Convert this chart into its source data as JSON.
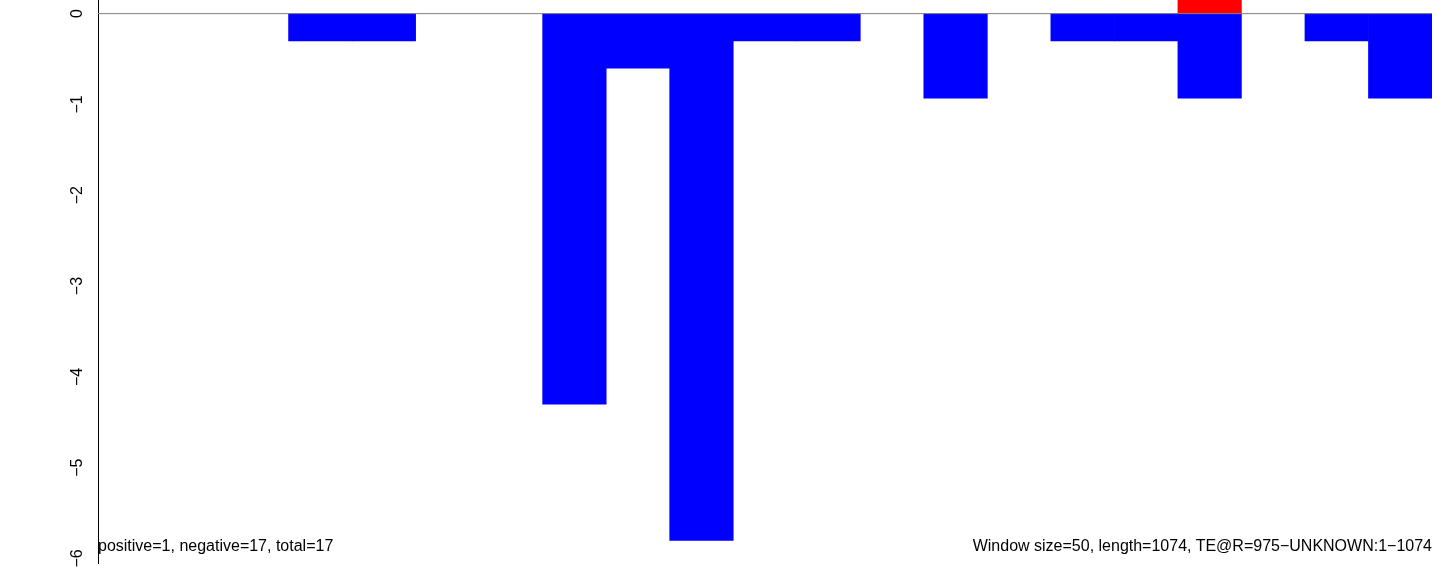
{
  "chart_data": {
    "type": "bar",
    "stacked": true,
    "categories": [
      null,
      null,
      null,
      null,
      null,
      null,
      null,
      null,
      null,
      null,
      null,
      null,
      null,
      null,
      null,
      null,
      null,
      null,
      null,
      null,
      null
    ],
    "series": [
      {
        "color": "#ff0000",
        "values": [
          null,
          null,
          null,
          null,
          null,
          null,
          null,
          null,
          null,
          null,
          null,
          null,
          null,
          null,
          null,
          null,
          null,
          0.15,
          null,
          null,
          null
        ]
      },
      {
        "color": "#0000ff",
        "values": [
          null,
          null,
          null,
          -0.3,
          -0.3,
          null,
          null,
          -4.3,
          -0.6,
          -5.8,
          -0.3,
          -0.3,
          null,
          -0.93,
          null,
          -0.3,
          -0.3,
          -0.93,
          null,
          -0.3,
          -0.93
        ]
      }
    ],
    "ylim": [
      -6.05,
      0.15
    ],
    "yticks": [
      -6,
      -5,
      -4,
      -3,
      -2,
      -1,
      0
    ],
    "grid": false,
    "legend": false,
    "tick_labels": "y",
    "ref_lines": [
      {
        "axis": "y",
        "value": 0,
        "color": "#808080"
      }
    ],
    "annotations": [
      "positive=1, negative=17, total=17",
      "Window size=50, length=1074, TE@R=975−UNKNOWN:1−1074"
    ]
  }
}
